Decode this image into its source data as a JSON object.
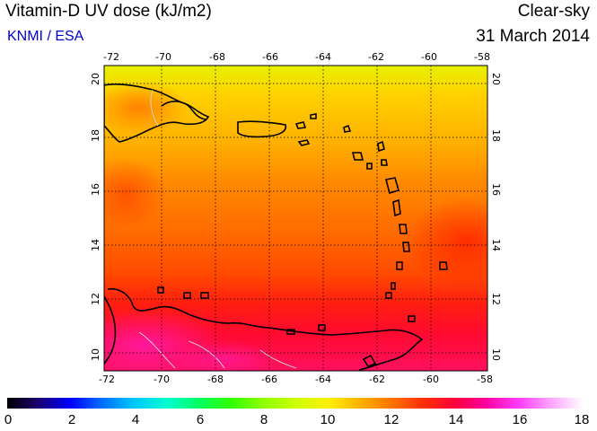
{
  "header": {
    "title": "Vitamin-D UV dose (kJ/m2)",
    "source": "KNMI / ESA",
    "sky": "Clear-sky",
    "date": "31 March 2014"
  },
  "map": {
    "lon_labels": [
      "-72",
      "-70",
      "-68",
      "-66",
      "-64",
      "-62",
      "-60",
      "-58"
    ],
    "lat_labels": [
      "20",
      "18",
      "16",
      "14",
      "12",
      "10"
    ],
    "lon_range": [
      -72,
      -58
    ],
    "lat_range": [
      9.4,
      20.5
    ]
  },
  "colorbar": {
    "labels": [
      "0",
      "2",
      "4",
      "6",
      "8",
      "10",
      "12",
      "14",
      "16",
      "18"
    ],
    "min": 0,
    "max": 18
  }
}
